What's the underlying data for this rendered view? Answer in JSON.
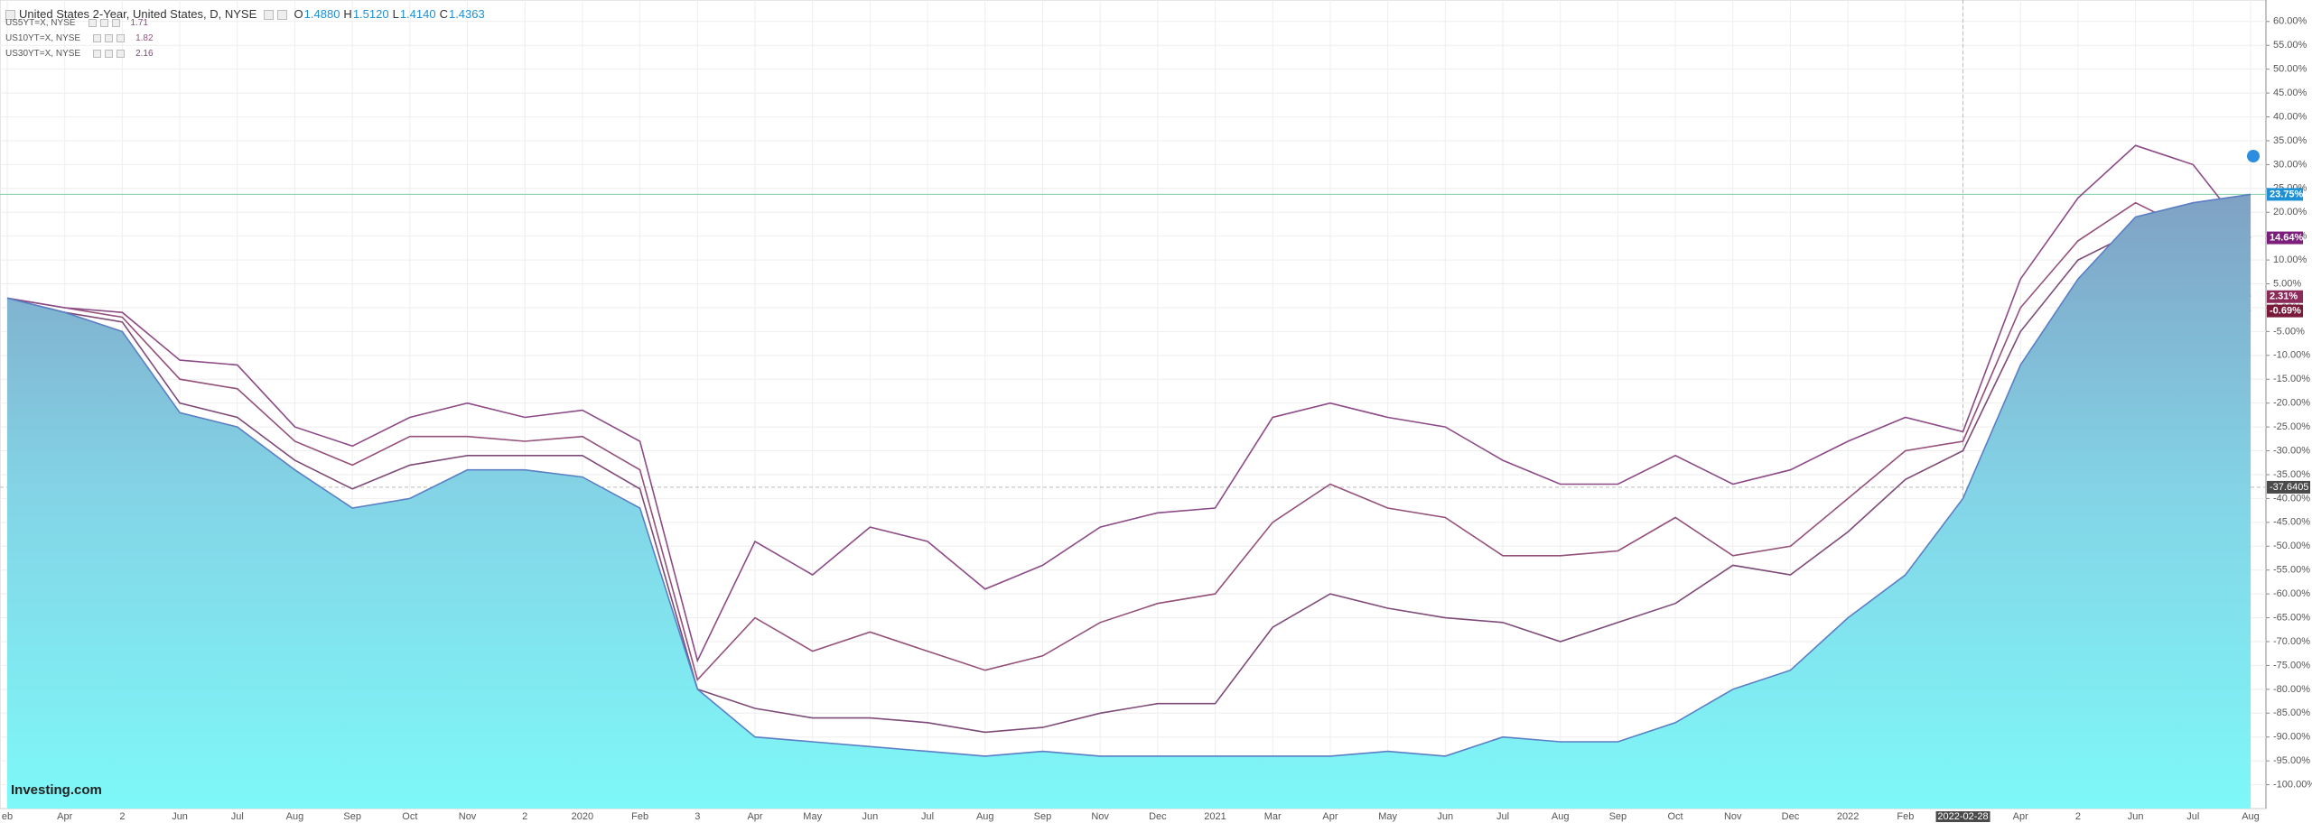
{
  "chart_data": {
    "type": "line",
    "title": "United States 2-Year, United States, D, NYSE",
    "ohlc": [
      {
        "name": "O",
        "value": "1.4880"
      },
      {
        "name": "H",
        "value": "1.5120"
      },
      {
        "name": "L",
        "value": "1.4140"
      },
      {
        "name": "C",
        "value": "1.4363"
      }
    ],
    "logo": "Investing.com",
    "categories": [
      "eb",
      "Apr",
      "2",
      "Jun",
      "Jul",
      "Aug",
      "Sep",
      "Oct",
      "Nov",
      "2",
      "2020",
      "Feb",
      "3",
      "Apr",
      "May",
      "Jun",
      "Jul",
      "Aug",
      "Sep",
      "Nov",
      "Dec",
      "2021",
      "Mar",
      "Apr",
      "May",
      "Jun",
      "Jul",
      "Aug",
      "Sep",
      "Oct",
      "Nov",
      "Dec",
      "2022",
      "Feb",
      "2022-02-28",
      "Apr",
      "2",
      "Jun",
      "Jul",
      "Aug"
    ],
    "highlight_category": 34,
    "crosshair_y": -37.6405,
    "series": [
      {
        "name": "United States 2-Year",
        "color": "#5a7fc4",
        "area": true,
        "values": [
          2,
          -1,
          -5,
          -22,
          -25,
          -34,
          -42,
          -40,
          -34,
          -34,
          -35.5,
          -42,
          -80,
          -90,
          -91,
          -92,
          -93,
          -94,
          -93,
          -94,
          -94,
          -94,
          -94,
          -94,
          -93,
          -94,
          -90,
          -91,
          -91,
          -87,
          -80,
          -76,
          -65,
          -56,
          -40,
          -12,
          6,
          19,
          22,
          23.75
        ],
        "value_labels": [
          null,
          null,
          null,
          null,
          null,
          null,
          null,
          null,
          null,
          null,
          null,
          null,
          null,
          null,
          null,
          null,
          null,
          null,
          null,
          null,
          null,
          null,
          null,
          null,
          null,
          null,
          null,
          null,
          null,
          null,
          null,
          null,
          null,
          null,
          null,
          null,
          null,
          null,
          null,
          "23.75%"
        ],
        "label_color": "#1e90d6"
      },
      {
        "name": "US5YT=X, NYSE",
        "last": "1.71",
        "color": "#8c4a86",
        "values": [
          2,
          0,
          -1,
          -11,
          -12,
          -25,
          -29,
          -23,
          -20,
          -23,
          -21.5,
          -28,
          -74,
          -49,
          -56,
          -46,
          -49,
          -59,
          -54,
          -46,
          -43,
          -42,
          -23,
          -20,
          -23,
          -25,
          -32,
          -37,
          -37,
          -31,
          -37,
          -34,
          -28,
          -23,
          -26,
          6,
          23,
          34,
          30,
          14.64
        ],
        "value_labels": [
          null,
          null,
          null,
          null,
          null,
          null,
          null,
          null,
          null,
          null,
          null,
          null,
          null,
          null,
          null,
          null,
          null,
          null,
          null,
          null,
          null,
          null,
          null,
          null,
          null,
          null,
          null,
          null,
          null,
          null,
          null,
          null,
          null,
          null,
          null,
          null,
          null,
          null,
          null,
          "14.64%"
        ],
        "label_color": "#7b1f7b"
      },
      {
        "name": "US10YT=X, NYSE",
        "last": "1.82",
        "color": "#94507a",
        "values": [
          2,
          0,
          -2,
          -15,
          -17,
          -28,
          -33,
          -27,
          -27,
          -28,
          -27,
          -34,
          -78,
          -65,
          -72,
          -68,
          -72,
          -76,
          -73,
          -66,
          -62,
          -60,
          -45,
          -37,
          -42,
          -44,
          -52,
          -52,
          -51,
          -44,
          -52,
          -50,
          -40,
          -30,
          -28,
          0,
          14,
          22,
          16,
          2.31
        ],
        "value_labels": [
          null,
          null,
          null,
          null,
          null,
          null,
          null,
          null,
          null,
          null,
          null,
          null,
          null,
          null,
          null,
          null,
          null,
          null,
          null,
          null,
          null,
          null,
          null,
          null,
          null,
          null,
          null,
          null,
          null,
          null,
          null,
          null,
          null,
          null,
          null,
          null,
          null,
          null,
          null,
          "2.31%"
        ],
        "label_color": "#8a2b5a"
      },
      {
        "name": "US30YT=X, NYSE",
        "last": "2.16",
        "color": "#7e4a78",
        "values": [
          2,
          -1,
          -3,
          -20,
          -23,
          -32,
          -38,
          -33,
          -31,
          -31,
          -31,
          -38,
          -80,
          -84,
          -86,
          -86,
          -87,
          -89,
          -88,
          -85,
          -83,
          -83,
          -67,
          -60,
          -63,
          -65,
          -66,
          -70,
          -66,
          -62,
          -54,
          -56,
          -47,
          -36,
          -30,
          -5,
          10,
          16,
          10,
          -0.69
        ],
        "value_labels": [
          null,
          null,
          null,
          null,
          null,
          null,
          null,
          null,
          null,
          null,
          null,
          null,
          null,
          null,
          null,
          null,
          null,
          null,
          null,
          null,
          null,
          null,
          null,
          null,
          null,
          null,
          null,
          null,
          null,
          null,
          null,
          null,
          null,
          null,
          null,
          null,
          null,
          null,
          null,
          "-0.69%"
        ],
        "label_color": "#7a1a3a"
      }
    ],
    "ylim": [
      -105,
      64.5
    ],
    "yticks": [
      {
        "value": 60,
        "label": "60.00%"
      },
      {
        "value": 55,
        "label": "55.00%"
      },
      {
        "value": 50,
        "label": "50.00%"
      },
      {
        "value": 45,
        "label": "45.00%"
      },
      {
        "value": 40,
        "label": "40.00%"
      },
      {
        "value": 35,
        "label": "35.00%"
      },
      {
        "value": 30,
        "label": "30.00%"
      },
      {
        "value": 25,
        "label": "25.00%"
      },
      {
        "value": 20,
        "label": "20.00%"
      },
      {
        "value": 15,
        "label": "15.00%"
      },
      {
        "value": 10,
        "label": "10.00%"
      },
      {
        "value": 5,
        "label": "5.00%"
      },
      {
        "value": 0,
        "label": "0.00%"
      },
      {
        "value": -5,
        "label": "-5.00%"
      },
      {
        "value": -10,
        "label": "-10.00%"
      },
      {
        "value": -15,
        "label": "-15.00%"
      },
      {
        "value": -20,
        "label": "-20.00%"
      },
      {
        "value": -25,
        "label": "-25.00%"
      },
      {
        "value": -30,
        "label": "-30.00%"
      },
      {
        "value": -35,
        "label": "-35.00%"
      },
      {
        "value": -40,
        "label": "-40.00%"
      },
      {
        "value": -45,
        "label": "-45.00%"
      },
      {
        "value": -50,
        "label": "-50.00%"
      },
      {
        "value": -55,
        "label": "-55.00%"
      },
      {
        "value": -60,
        "label": "-60.00%"
      },
      {
        "value": -65,
        "label": "-65.00%"
      },
      {
        "value": -70,
        "label": "-70.00%"
      },
      {
        "value": -75,
        "label": "-75.00%"
      },
      {
        "value": -80,
        "label": "-80.00%"
      },
      {
        "value": -85,
        "label": "-85.00%"
      },
      {
        "value": -90,
        "label": "-90.00%"
      },
      {
        "value": -95,
        "label": "-95.00%"
      },
      {
        "value": -100,
        "label": "-100.00%"
      }
    ],
    "grid": true
  }
}
